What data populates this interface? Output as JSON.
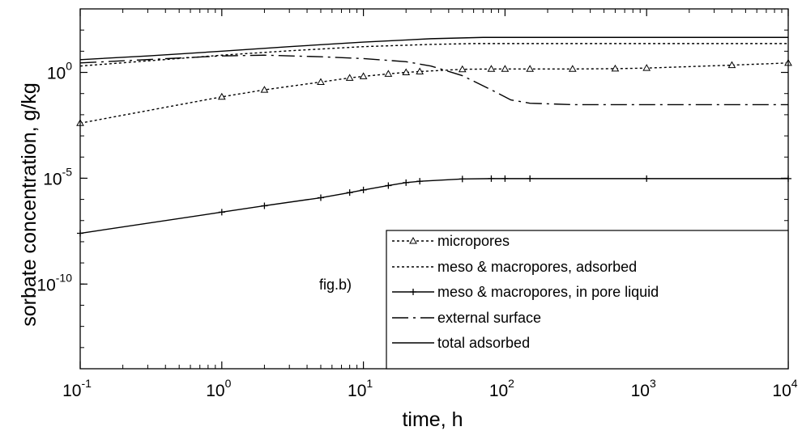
{
  "chart_data": {
    "type": "line",
    "title": "",
    "xlabel": "time, h",
    "ylabel": "sorbate concentration, g/kg",
    "xscale": "log",
    "yscale": "log",
    "xlim": [
      0.1,
      10000
    ],
    "ylim": [
      1e-14,
      1000
    ],
    "grid": false,
    "legend_position": "bottom-right",
    "x_ticks": [
      {
        "value": 0.1,
        "base": "10",
        "exp": "-1"
      },
      {
        "value": 1,
        "base": "10",
        "exp": "0"
      },
      {
        "value": 10,
        "base": "10",
        "exp": "1"
      },
      {
        "value": 100,
        "base": "10",
        "exp": "2"
      },
      {
        "value": 1000,
        "base": "10",
        "exp": "3"
      },
      {
        "value": 10000,
        "base": "10",
        "exp": "4"
      }
    ],
    "y_ticks": [
      {
        "value": 1,
        "base": "10",
        "exp": "0"
      },
      {
        "value": 1e-05,
        "base": "10",
        "exp": "-5"
      },
      {
        "value": 1e-10,
        "base": "10",
        "exp": "-10"
      }
    ],
    "annotations": [
      {
        "text": "fig.b)",
        "x": 12,
        "y": 1e-09
      }
    ],
    "series": [
      {
        "name": "micropores",
        "style": "dotted-triangle",
        "x": [
          0.1,
          1,
          2,
          5,
          8,
          10,
          15,
          20,
          25,
          50,
          80,
          100,
          150,
          300,
          600,
          1000,
          4000,
          10000
        ],
        "y": [
          0.004,
          0.07,
          0.15,
          0.35,
          0.55,
          0.65,
          0.85,
          1.0,
          1.1,
          1.4,
          1.45,
          1.45,
          1.45,
          1.45,
          1.5,
          1.6,
          2.2,
          2.8
        ]
      },
      {
        "name": "meso & macropores, adsorbed",
        "style": "dotted",
        "x": [
          0.1,
          0.3,
          1,
          3,
          10,
          30,
          60,
          100,
          1000,
          10000
        ],
        "y": [
          2.0,
          3.5,
          6.5,
          10.5,
          16.5,
          21,
          23,
          23,
          23,
          23
        ]
      },
      {
        "name": "meso & macropores, in pore liquid",
        "style": "solid-plus",
        "x": [
          0.1,
          1,
          2,
          5,
          8,
          10,
          15,
          20,
          25,
          50,
          80,
          100,
          150,
          1000,
          10000
        ],
        "y": [
          2.5e-08,
          2.5e-07,
          5e-07,
          1.2e-06,
          2.1e-06,
          2.8e-06,
          4.5e-06,
          6.2e-06,
          7.2e-06,
          9.2e-06,
          9.6e-06,
          9.6e-06,
          9.6e-06,
          9.6e-06,
          9.6e-06
        ]
      },
      {
        "name": "external surface",
        "style": "dash-dot",
        "x": [
          0.1,
          1,
          2,
          5,
          10,
          20,
          30,
          50,
          80,
          110,
          150,
          300,
          1000,
          10000
        ],
        "y": [
          2.8,
          6.0,
          6.5,
          5.5,
          4.5,
          3.2,
          2.0,
          0.7,
          0.15,
          0.05,
          0.035,
          0.03,
          0.03,
          0.03
        ]
      },
      {
        "name": "total adsorbed",
        "style": "solid",
        "x": [
          0.1,
          0.3,
          1,
          3,
          10,
          30,
          70,
          100,
          1000,
          10000
        ],
        "y": [
          4.0,
          6.0,
          10.0,
          16.5,
          27,
          39,
          45,
          45,
          45,
          45
        ]
      }
    ]
  }
}
